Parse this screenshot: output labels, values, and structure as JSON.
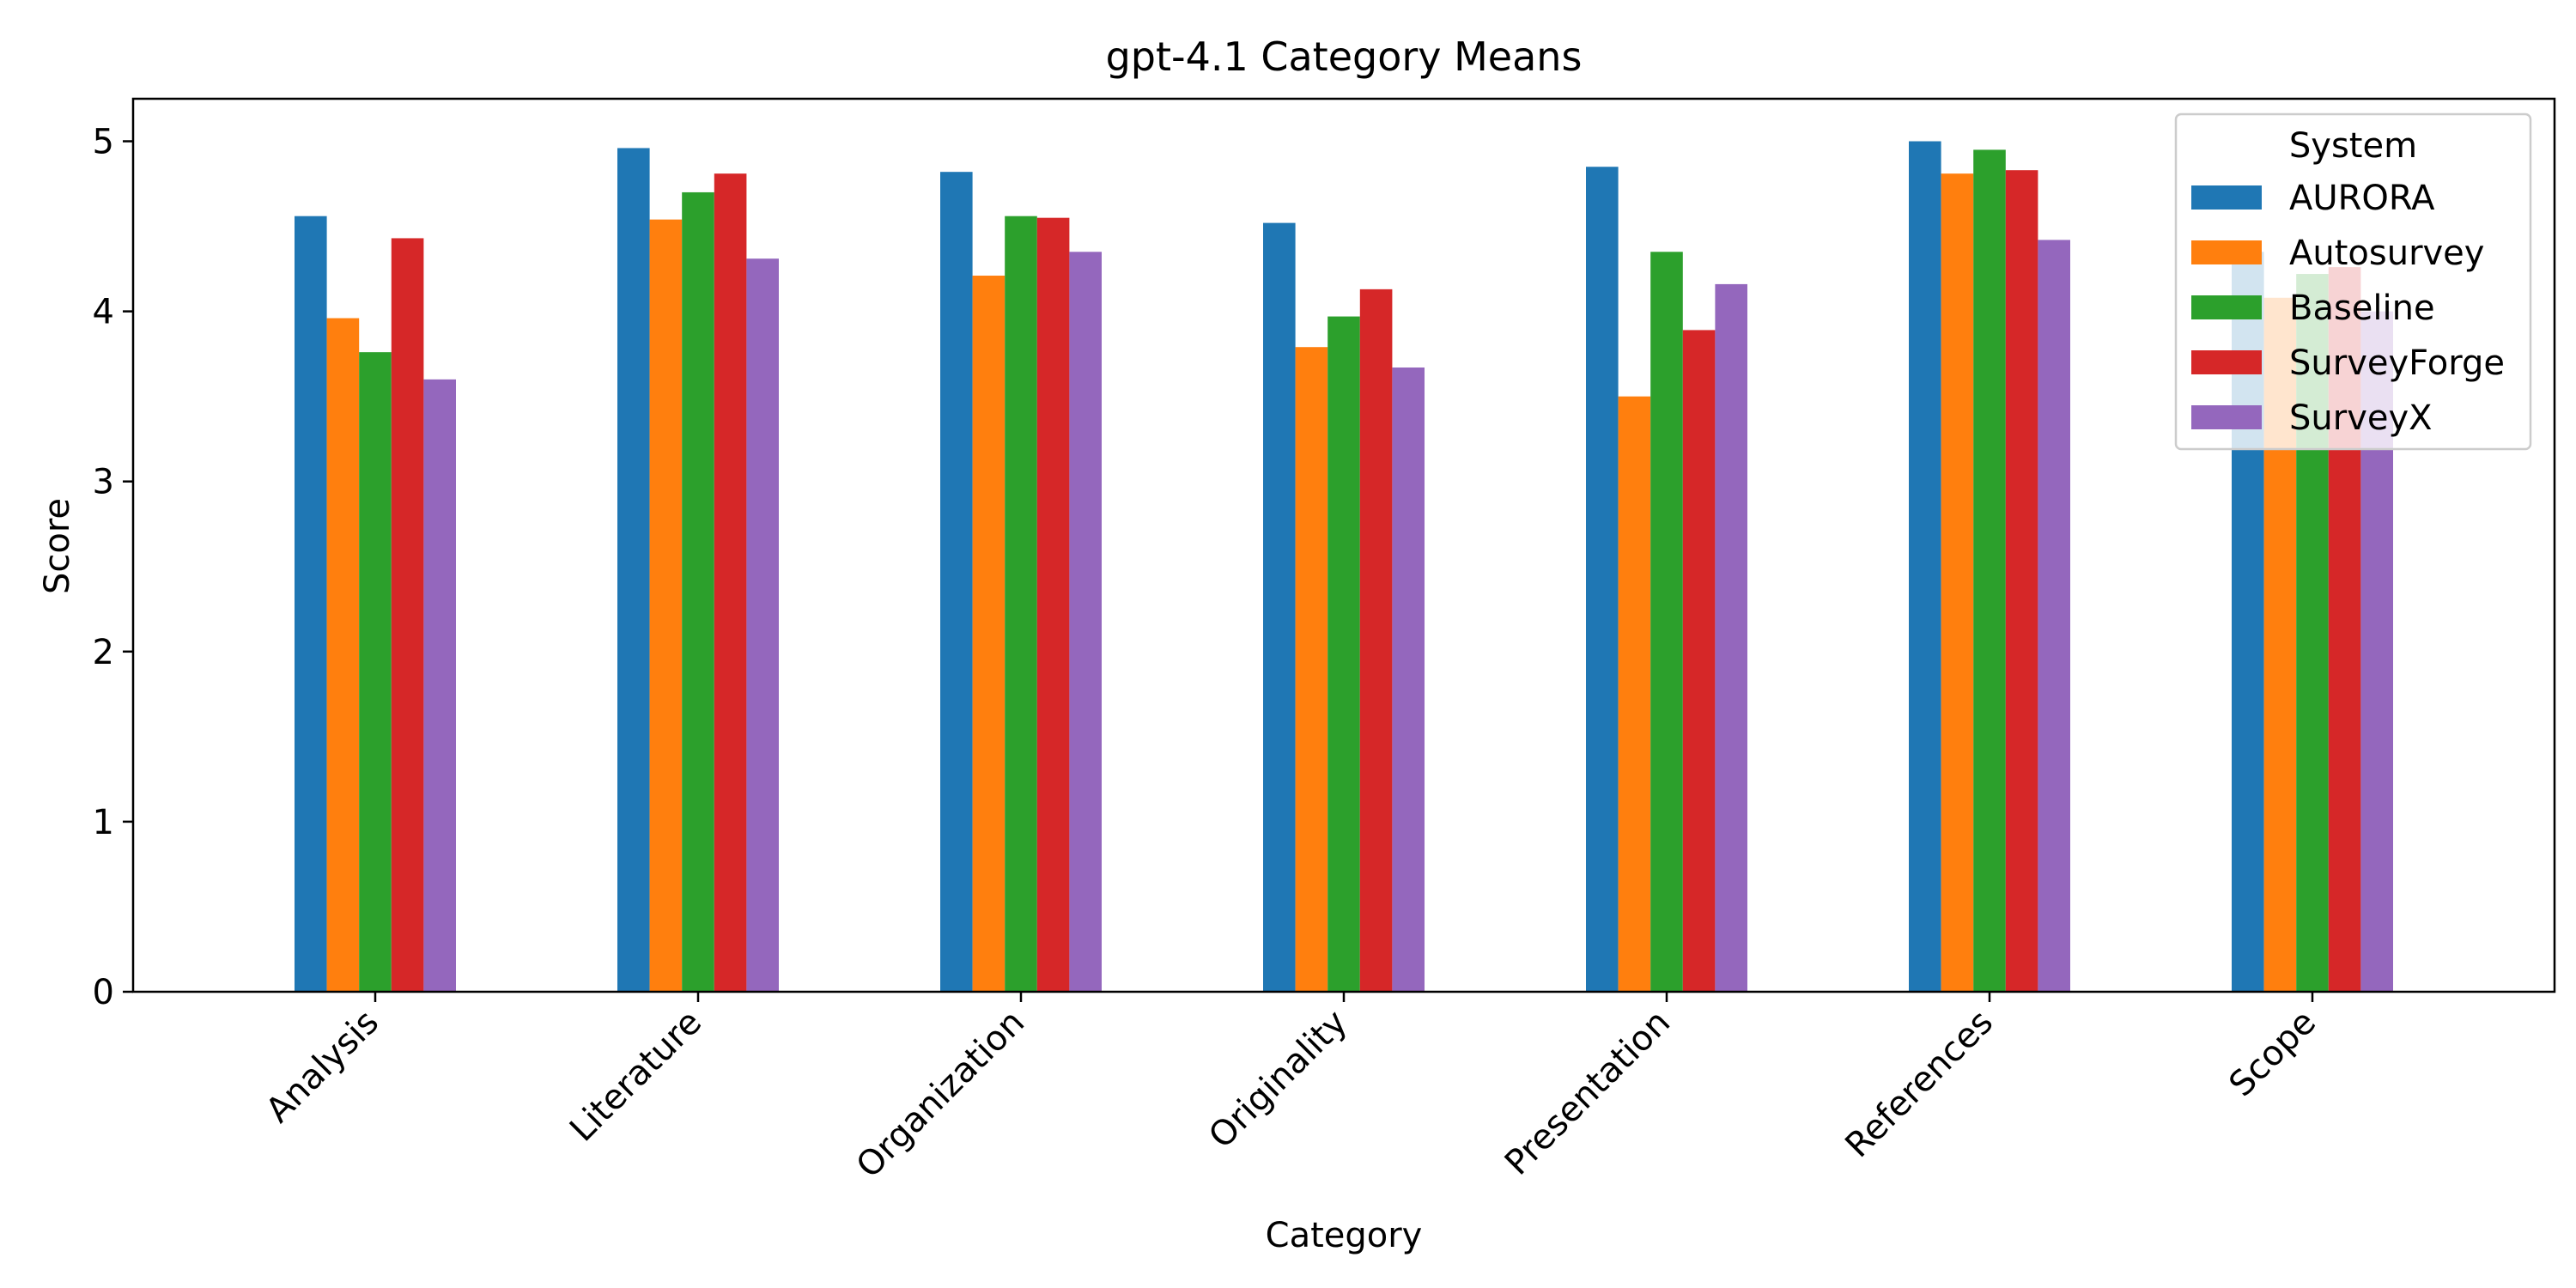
{
  "chart_data": {
    "type": "bar",
    "title": "gpt-4.1 Category Means",
    "xlabel": "Category",
    "ylabel": "Score",
    "ylim": [
      0,
      5.25
    ],
    "yticks": [
      0,
      1,
      2,
      3,
      4,
      5
    ],
    "grid": false,
    "legend_title": "System",
    "legend_position": "top-right",
    "categories": [
      "Analysis",
      "Literature",
      "Organization",
      "Originality",
      "Presentation",
      "References",
      "Scope"
    ],
    "series": [
      {
        "name": "AURORA",
        "color": "#1f77b4",
        "values": [
          4.56,
          4.96,
          4.82,
          4.52,
          4.85,
          5.0,
          4.35
        ]
      },
      {
        "name": "Autosurvey",
        "color": "#ff7f0e",
        "values": [
          3.96,
          4.54,
          4.21,
          3.79,
          3.5,
          4.81,
          4.08
        ]
      },
      {
        "name": "Baseline",
        "color": "#2ca02c",
        "values": [
          3.76,
          4.7,
          4.56,
          3.97,
          4.35,
          4.95,
          4.22
        ]
      },
      {
        "name": "SurveyForge",
        "color": "#d62728",
        "values": [
          4.43,
          4.81,
          4.55,
          4.13,
          3.89,
          4.83,
          4.26
        ]
      },
      {
        "name": "SurveyX",
        "color": "#9467bd",
        "values": [
          3.6,
          4.31,
          4.35,
          3.67,
          4.16,
          4.42,
          4.0
        ]
      }
    ]
  }
}
